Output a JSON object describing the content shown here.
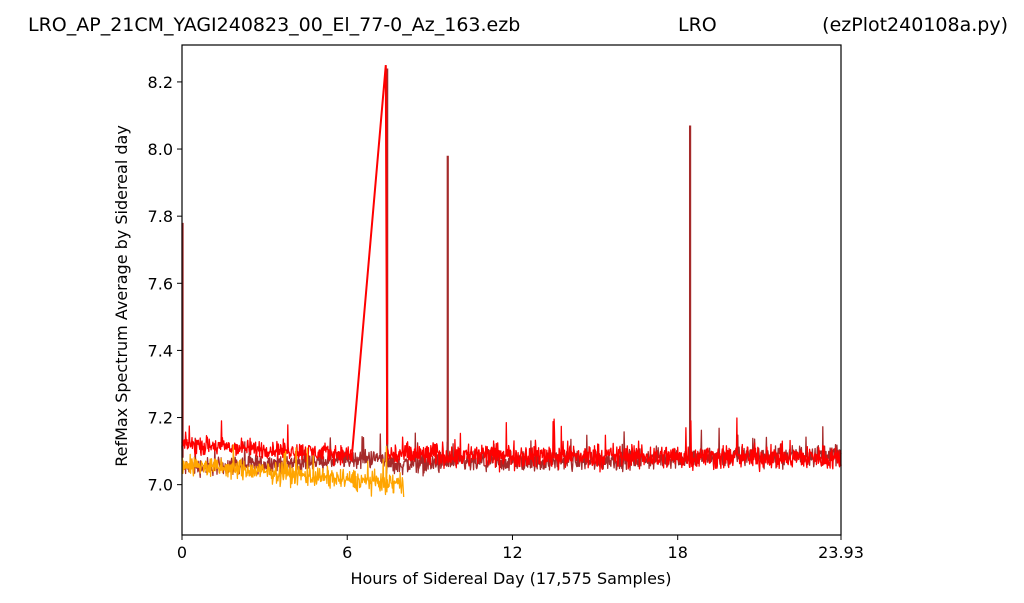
{
  "header": {
    "filename": "LRO_AP_21CM_YAGI240823_00_El_77-0_Az_163.ezb",
    "site": "LRO",
    "program": "(ezPlot240108a.py)"
  },
  "chart_data": {
    "type": "line",
    "xlabel": "Hours of Sidereal Day  (17,575 Samples)",
    "ylabel": "RefMax Spectrum Average by Sidereal day",
    "xlim": [
      0,
      23.93
    ],
    "ylim": [
      6.85,
      8.31
    ],
    "x_ticks": [
      0,
      6,
      12,
      18,
      23.93
    ],
    "x_tick_labels": [
      "0",
      "6",
      "12",
      "18",
      "23.93"
    ],
    "y_ticks": [
      7.0,
      7.2,
      7.4,
      7.6,
      7.8,
      8.0,
      8.2
    ],
    "y_tick_labels": [
      "7.0",
      "7.2",
      "7.4",
      "7.6",
      "7.8",
      "8.0",
      "8.2"
    ],
    "grid": false,
    "legend": "none",
    "series": [
      {
        "color": "#a52a2a",
        "segments": [
          {
            "x_start": 0.0,
            "x_end": 7.4,
            "y_start": 7.05,
            "y_end": 7.08,
            "noise": 0.04
          },
          {
            "x_start": 7.4,
            "x_end": 23.93,
            "y_start": 7.06,
            "y_end": 7.09,
            "noise": 0.045
          }
        ],
        "spikes": [
          {
            "x": 0.02,
            "y": 7.78
          },
          {
            "x": 7.45,
            "y": 8.24
          },
          {
            "x": 9.65,
            "y": 7.98
          },
          {
            "x": 18.45,
            "y": 8.07
          }
        ]
      },
      {
        "color": "#ff0000",
        "segments": [
          {
            "x_start": 0.0,
            "x_end": 6.15,
            "y_start": 7.12,
            "y_end": 7.09,
            "noise": 0.04
          },
          {
            "x_start": 7.45,
            "x_end": 23.93,
            "y_start": 7.09,
            "y_end": 7.08,
            "noise": 0.055
          }
        ],
        "ramp": [
          {
            "x": 6.15,
            "y": 7.07
          },
          {
            "x": 7.4,
            "y": 8.25
          },
          {
            "x": 7.45,
            "y": 7.12
          }
        ]
      },
      {
        "color": "#ffa500",
        "segments": [
          {
            "x_start": 0.0,
            "x_end": 8.05,
            "y_start": 7.06,
            "y_end": 7.0,
            "noise": 0.045
          }
        ]
      }
    ]
  }
}
